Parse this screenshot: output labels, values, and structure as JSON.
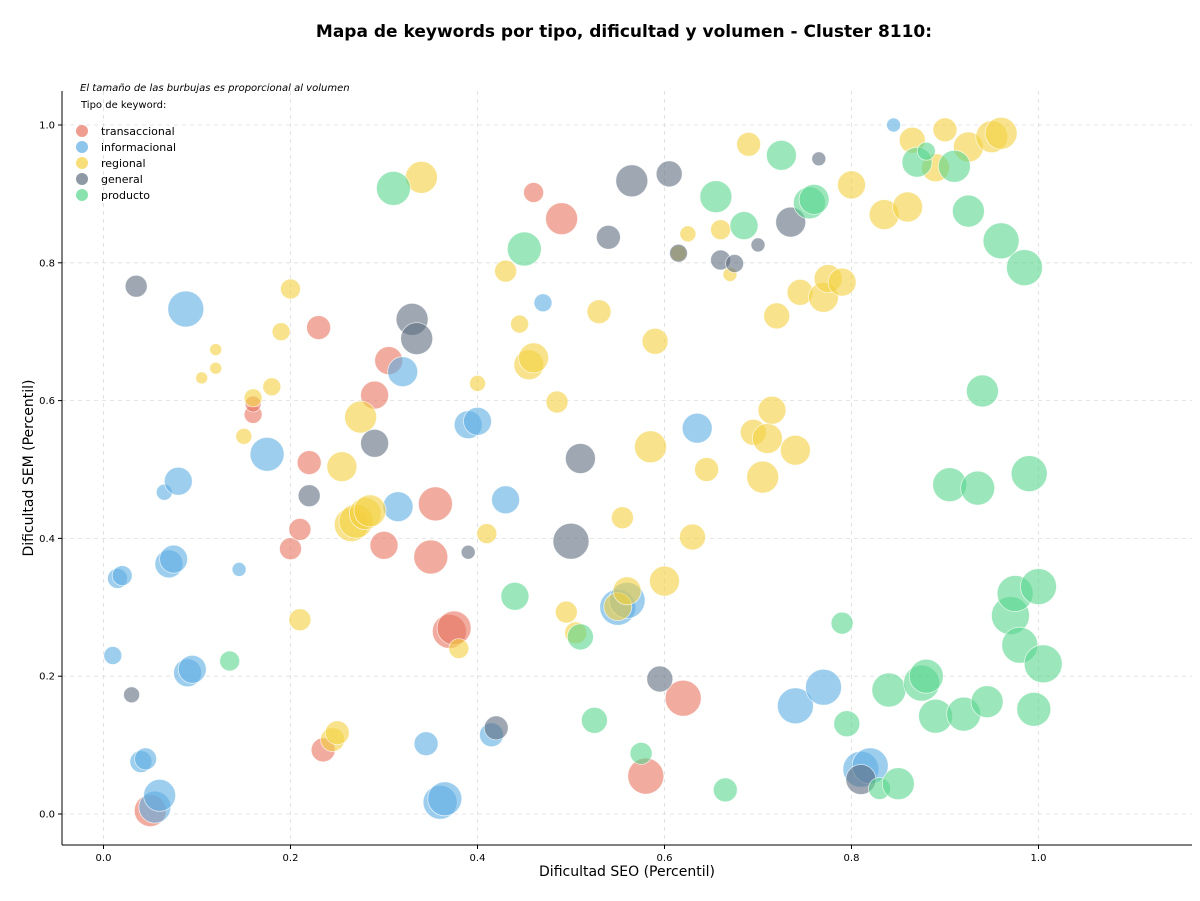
{
  "chart_data": {
    "type": "scatter",
    "title": "Mapa de keywords por tipo, dificultad y volumen - Cluster 8110:",
    "xlabel": "Dificultad SEO (Percentil)",
    "ylabel": "Dificultad SEM (Percentil)",
    "xlim": [
      -0.04,
      1.05
    ],
    "ylim": [
      -0.045,
      1.05
    ],
    "xticks": [
      0.0,
      0.2,
      0.4,
      0.6,
      0.8,
      1.0
    ],
    "yticks": [
      0.0,
      0.2,
      0.4,
      0.6,
      0.8,
      1.0
    ],
    "grid": true,
    "note": "El tamaño de las burbujas es proporcional al volumen",
    "legend_title": "Tipo de keyword:",
    "legend_position": "top-left",
    "series": [
      {
        "name": "transaccional",
        "color": "#e8735f",
        "points": [
          [
            0.05,
            0.005,
            16
          ],
          [
            0.16,
            0.58,
            9
          ],
          [
            0.16,
            0.595,
            8
          ],
          [
            0.2,
            0.385,
            11
          ],
          [
            0.21,
            0.413,
            11
          ],
          [
            0.22,
            0.51,
            12
          ],
          [
            0.23,
            0.706,
            12
          ],
          [
            0.235,
            0.093,
            12
          ],
          [
            0.29,
            0.608,
            14
          ],
          [
            0.3,
            0.39,
            14
          ],
          [
            0.305,
            0.658,
            14
          ],
          [
            0.35,
            0.373,
            17
          ],
          [
            0.355,
            0.45,
            17
          ],
          [
            0.37,
            0.265,
            17
          ],
          [
            0.375,
            0.27,
            17
          ],
          [
            0.46,
            0.902,
            10
          ],
          [
            0.49,
            0.864,
            16
          ],
          [
            0.58,
            0.055,
            18
          ],
          [
            0.62,
            0.168,
            18
          ]
        ]
      },
      {
        "name": "informacional",
        "color": "#5dade2",
        "points": [
          [
            0.01,
            0.23,
            9
          ],
          [
            0.015,
            0.342,
            10
          ],
          [
            0.02,
            0.346,
            10
          ],
          [
            0.04,
            0.076,
            11
          ],
          [
            0.045,
            0.08,
            11
          ],
          [
            0.055,
            0.01,
            16
          ],
          [
            0.06,
            0.027,
            16
          ],
          [
            0.065,
            0.467,
            8
          ],
          [
            0.07,
            0.363,
            14
          ],
          [
            0.075,
            0.37,
            14
          ],
          [
            0.08,
            0.483,
            14
          ],
          [
            0.088,
            0.733,
            18
          ],
          [
            0.09,
            0.205,
            14
          ],
          [
            0.095,
            0.21,
            14
          ],
          [
            0.145,
            0.355,
            7
          ],
          [
            0.175,
            0.522,
            17
          ],
          [
            0.315,
            0.446,
            15
          ],
          [
            0.32,
            0.642,
            15
          ],
          [
            0.345,
            0.102,
            12
          ],
          [
            0.36,
            0.017,
            17
          ],
          [
            0.365,
            0.022,
            17
          ],
          [
            0.39,
            0.565,
            14
          ],
          [
            0.4,
            0.57,
            14
          ],
          [
            0.415,
            0.115,
            12
          ],
          [
            0.43,
            0.456,
            14
          ],
          [
            0.47,
            0.742,
            9
          ],
          [
            0.55,
            0.3,
            18
          ],
          [
            0.56,
            0.31,
            18
          ],
          [
            0.635,
            0.56,
            15
          ],
          [
            0.74,
            0.157,
            18
          ],
          [
            0.77,
            0.184,
            18
          ],
          [
            0.81,
            0.065,
            18
          ],
          [
            0.82,
            0.07,
            18
          ],
          [
            0.845,
            1.0,
            7
          ]
        ]
      },
      {
        "name": "regional",
        "color": "#f4d03f",
        "points": [
          [
            0.105,
            0.633,
            6
          ],
          [
            0.12,
            0.674,
            6
          ],
          [
            0.12,
            0.647,
            6
          ],
          [
            0.15,
            0.548,
            8
          ],
          [
            0.16,
            0.604,
            9
          ],
          [
            0.18,
            0.62,
            9
          ],
          [
            0.19,
            0.7,
            9
          ],
          [
            0.2,
            0.762,
            10
          ],
          [
            0.21,
            0.282,
            11
          ],
          [
            0.245,
            0.108,
            12
          ],
          [
            0.25,
            0.118,
            12
          ],
          [
            0.255,
            0.504,
            15
          ],
          [
            0.265,
            0.42,
            17
          ],
          [
            0.27,
            0.425,
            17
          ],
          [
            0.275,
            0.576,
            16
          ],
          [
            0.28,
            0.436,
            16
          ],
          [
            0.285,
            0.44,
            16
          ],
          [
            0.34,
            0.924,
            16
          ],
          [
            0.38,
            0.24,
            10
          ],
          [
            0.4,
            0.625,
            8
          ],
          [
            0.41,
            0.407,
            10
          ],
          [
            0.43,
            0.788,
            11
          ],
          [
            0.445,
            0.711,
            9
          ],
          [
            0.455,
            0.652,
            15
          ],
          [
            0.46,
            0.662,
            15
          ],
          [
            0.485,
            0.598,
            11
          ],
          [
            0.495,
            0.293,
            11
          ],
          [
            0.505,
            0.263,
            11
          ],
          [
            0.53,
            0.729,
            12
          ],
          [
            0.55,
            0.301,
            14
          ],
          [
            0.555,
            0.43,
            11
          ],
          [
            0.56,
            0.324,
            14
          ],
          [
            0.585,
            0.533,
            16
          ],
          [
            0.59,
            0.686,
            13
          ],
          [
            0.6,
            0.338,
            15
          ],
          [
            0.615,
            0.814,
            8
          ],
          [
            0.625,
            0.842,
            8
          ],
          [
            0.63,
            0.402,
            13
          ],
          [
            0.645,
            0.5,
            12
          ],
          [
            0.66,
            0.848,
            10
          ],
          [
            0.67,
            0.783,
            7
          ],
          [
            0.69,
            0.972,
            12
          ],
          [
            0.695,
            0.554,
            13
          ],
          [
            0.705,
            0.489,
            16
          ],
          [
            0.71,
            0.545,
            15
          ],
          [
            0.715,
            0.586,
            14
          ],
          [
            0.72,
            0.723,
            13
          ],
          [
            0.74,
            0.528,
            15
          ],
          [
            0.745,
            0.757,
            13
          ],
          [
            0.77,
            0.75,
            15
          ],
          [
            0.775,
            0.777,
            14
          ],
          [
            0.79,
            0.772,
            14
          ],
          [
            0.8,
            0.913,
            14
          ],
          [
            0.835,
            0.87,
            15
          ],
          [
            0.86,
            0.881,
            15
          ],
          [
            0.865,
            0.978,
            13
          ],
          [
            0.89,
            0.938,
            14
          ],
          [
            0.9,
            0.993,
            12
          ],
          [
            0.925,
            0.968,
            15
          ],
          [
            0.95,
            0.983,
            16
          ],
          [
            0.96,
            0.988,
            16
          ]
        ]
      },
      {
        "name": "general",
        "color": "#5d6d7e",
        "points": [
          [
            0.03,
            0.173,
            8
          ],
          [
            0.035,
            0.766,
            11
          ],
          [
            0.22,
            0.462,
            11
          ],
          [
            0.29,
            0.538,
            14
          ],
          [
            0.33,
            0.718,
            16
          ],
          [
            0.335,
            0.69,
            16
          ],
          [
            0.39,
            0.38,
            7
          ],
          [
            0.42,
            0.125,
            12
          ],
          [
            0.5,
            0.396,
            18
          ],
          [
            0.51,
            0.516,
            15
          ],
          [
            0.54,
            0.837,
            12
          ],
          [
            0.565,
            0.919,
            16
          ],
          [
            0.595,
            0.196,
            13
          ],
          [
            0.605,
            0.929,
            13
          ],
          [
            0.615,
            0.814,
            9
          ],
          [
            0.66,
            0.804,
            10
          ],
          [
            0.675,
            0.799,
            9
          ],
          [
            0.7,
            0.826,
            7
          ],
          [
            0.735,
            0.859,
            15
          ],
          [
            0.765,
            0.951,
            7
          ],
          [
            0.81,
            0.05,
            15
          ]
        ]
      },
      {
        "name": "producto",
        "color": "#58d68d",
        "points": [
          [
            0.135,
            0.222,
            10
          ],
          [
            0.31,
            0.908,
            17
          ],
          [
            0.44,
            0.316,
            14
          ],
          [
            0.45,
            0.82,
            17
          ],
          [
            0.51,
            0.257,
            13
          ],
          [
            0.525,
            0.136,
            13
          ],
          [
            0.575,
            0.088,
            11
          ],
          [
            0.655,
            0.896,
            16
          ],
          [
            0.665,
            0.035,
            12
          ],
          [
            0.685,
            0.854,
            14
          ],
          [
            0.725,
            0.956,
            15
          ],
          [
            0.755,
            0.887,
            16
          ],
          [
            0.76,
            0.892,
            15
          ],
          [
            0.79,
            0.277,
            11
          ],
          [
            0.795,
            0.131,
            13
          ],
          [
            0.83,
            0.037,
            11
          ],
          [
            0.84,
            0.18,
            17
          ],
          [
            0.85,
            0.044,
            16
          ],
          [
            0.87,
            0.946,
            15
          ],
          [
            0.88,
            0.962,
            9
          ],
          [
            0.875,
            0.19,
            18
          ],
          [
            0.88,
            0.2,
            17
          ],
          [
            0.89,
            0.142,
            17
          ],
          [
            0.91,
            0.94,
            16
          ],
          [
            0.92,
            0.145,
            17
          ],
          [
            0.925,
            0.875,
            16
          ],
          [
            0.94,
            0.614,
            16
          ],
          [
            0.945,
            0.163,
            16
          ],
          [
            0.905,
            0.478,
            17
          ],
          [
            0.935,
            0.473,
            17
          ],
          [
            0.96,
            0.832,
            18
          ],
          [
            0.97,
            0.288,
            19
          ],
          [
            0.975,
            0.32,
            18
          ],
          [
            0.98,
            0.245,
            18
          ],
          [
            0.985,
            0.793,
            18
          ],
          [
            0.99,
            0.494,
            18
          ],
          [
            0.995,
            0.152,
            17
          ],
          [
            1.0,
            0.33,
            18
          ],
          [
            1.005,
            0.218,
            19
          ]
        ]
      }
    ]
  }
}
